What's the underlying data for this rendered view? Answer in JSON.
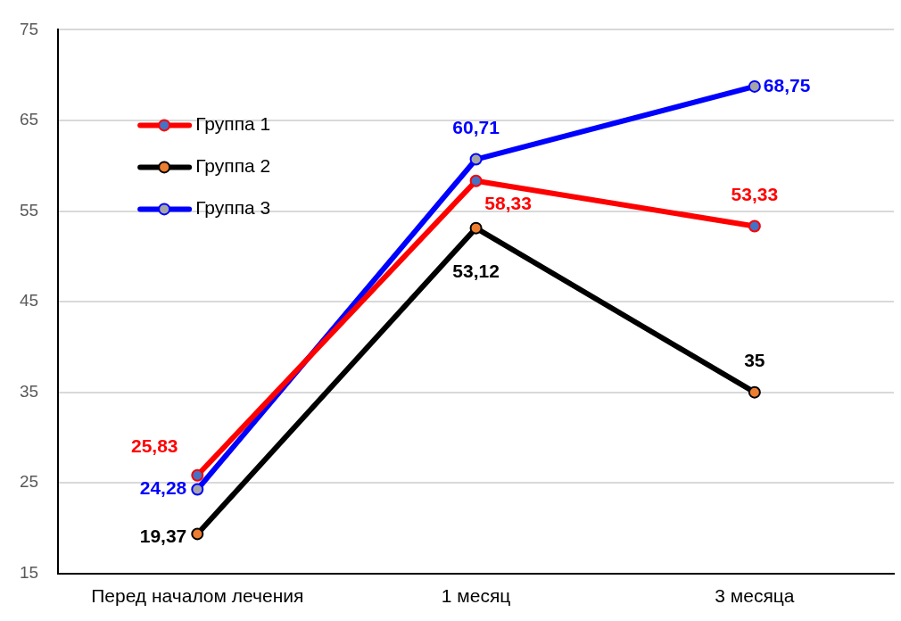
{
  "chart_data": {
    "type": "line",
    "categories": [
      "Перед началом лечения",
      "1 месяц",
      "3 месяца"
    ],
    "series": [
      {
        "name": "Группа 1",
        "color": "#ff0000",
        "colors": [
          "#4472c4",
          "#4472c4",
          "#4472c4"
        ],
        "values": [
          25.83,
          58.33,
          53.33
        ],
        "value_labels": [
          "25,83",
          "58,33",
          "53,33"
        ]
      },
      {
        "name": "Группа 2",
        "color": "#000000",
        "colors": [
          "#ed7d31",
          "#ed7d31",
          "#ed7d31"
        ],
        "values": [
          19.37,
          53.12,
          35
        ],
        "value_labels": [
          "19,37",
          "53,12",
          "35"
        ]
      },
      {
        "name": "Группа 3",
        "color": "#0000ff",
        "colors": [
          "#a5a5a5",
          "#a5a5a5",
          "#a5a5a5"
        ],
        "values": [
          24.28,
          60.71,
          68.75
        ],
        "value_labels": [
          "24,28",
          "60,71",
          "68,75"
        ]
      }
    ],
    "ylim": [
      15,
      75
    ],
    "yticks": [
      15,
      25,
      35,
      45,
      55,
      65,
      75
    ],
    "grid": "y",
    "legend": "top left",
    "marker": "circle",
    "line_style": "solid"
  }
}
